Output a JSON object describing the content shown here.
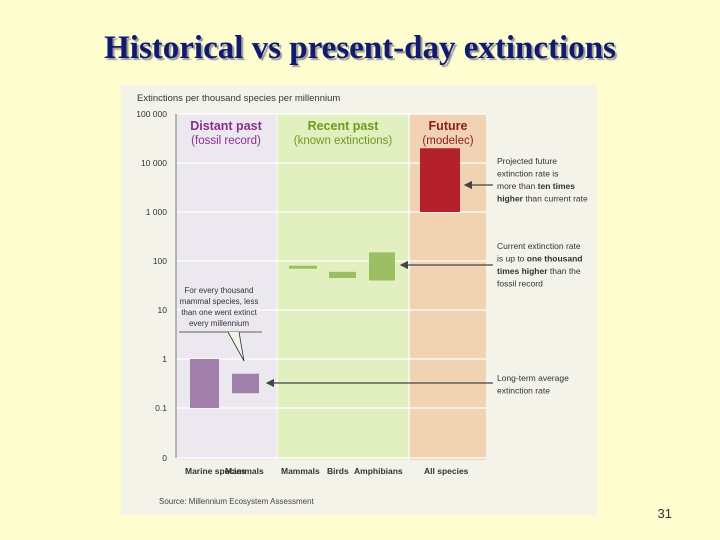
{
  "slide": {
    "title": "Historical vs present-day extinctions",
    "page_number": "31"
  },
  "chart_data": {
    "type": "bar",
    "title": "Extinctions per thousand species per millennium",
    "source": "Source: Millennium Ecosystem Assessment",
    "yscale": "log",
    "ylim": [
      0,
      100000
    ],
    "yticks": [
      "100 000",
      "10 000",
      "1 000",
      "100",
      "10",
      "1",
      "0.1",
      "0"
    ],
    "grid": true,
    "groups": [
      {
        "title": "Distant past",
        "subtitle": "(fossil record)",
        "color": "#8a2d8f",
        "bg": "#ece8ef"
      },
      {
        "title": "Recent past",
        "subtitle": "(known extinctions)",
        "color": "#6c9a1f",
        "bg": "#e2efbf"
      },
      {
        "title": "Future",
        "subtitle": "(modelec)",
        "color": "#8a1c1c",
        "bg": "#f1d3b4"
      }
    ],
    "categories": [
      "Marine species",
      "Mammals",
      "Mammals",
      "Birds",
      "Amphibians",
      "All species"
    ],
    "ranges": [
      {
        "category": "Marine species",
        "group": 0,
        "low": 0.1,
        "high": 1,
        "color": "#a280ac"
      },
      {
        "category": "Mammals",
        "group": 0,
        "low": 0.2,
        "high": 0.5,
        "color": "#a280ac"
      },
      {
        "category": "Mammals",
        "group": 1,
        "low": 70,
        "high": 80,
        "color": "#9cbf63"
      },
      {
        "category": "Birds",
        "group": 1,
        "low": 45,
        "high": 60,
        "color": "#9cbf63"
      },
      {
        "category": "Amphibians",
        "group": 1,
        "low": 40,
        "high": 150,
        "color": "#9cbf63"
      },
      {
        "category": "All species",
        "group": 2,
        "low": 1000,
        "high": 20000,
        "color": "#b4202c"
      }
    ],
    "annotations": {
      "fossil_note": [
        "For every thousand",
        "mammal species, less",
        "than one went extinct",
        "every millennium"
      ],
      "projected": [
        [
          {
            "t": "Projected future",
            "b": false
          }
        ],
        [
          {
            "t": "extinction rate is",
            "b": false
          }
        ],
        [
          {
            "t": "more than ",
            "b": false
          },
          {
            "t": "ten times",
            "b": true
          }
        ],
        [
          {
            "t": "higher",
            "b": true
          },
          {
            "t": " than current rate",
            "b": false
          }
        ]
      ],
      "current": [
        [
          {
            "t": "Current extinction rate",
            "b": false
          }
        ],
        [
          {
            "t": "is up to ",
            "b": false
          },
          {
            "t": "one thousand",
            "b": true
          }
        ],
        [
          {
            "t": "times higher",
            "b": true
          },
          {
            "t": " than the",
            "b": false
          }
        ],
        [
          {
            "t": "fossil record",
            "b": false
          }
        ]
      ],
      "longterm": [
        [
          {
            "t": "Long-term average",
            "b": false
          }
        ],
        [
          {
            "t": "extinction rate",
            "b": false
          }
        ]
      ]
    }
  }
}
